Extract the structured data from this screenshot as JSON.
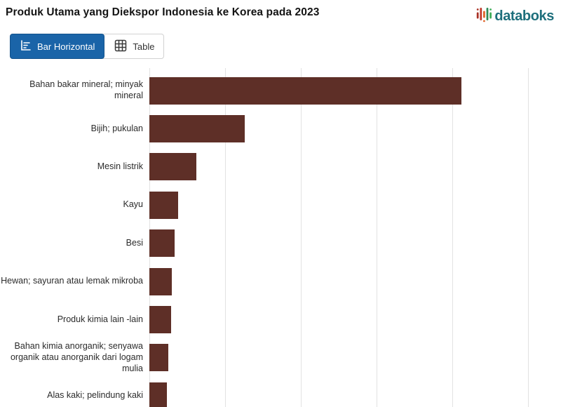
{
  "header": {
    "title": "Produk Utama yang Diekspor Indonesia ke Korea pada 2023",
    "logo_text": "databoks"
  },
  "tabs": [
    {
      "label": "Bar Horizontal",
      "icon": "bar-horizontal-icon",
      "active": true
    },
    {
      "label": "Table",
      "icon": "table-icon",
      "active": false
    }
  ],
  "colors": {
    "bar": "#5e2f27",
    "active_tab": "#1a64a8",
    "gridline": "#e2e2e2",
    "logo_teal": "#1e6f7c"
  },
  "chart_data": {
    "type": "bar",
    "orientation": "horizontal",
    "title": "Produk Utama yang Diekspor Indonesia ke Korea pada 2023",
    "categories": [
      "Bahan bakar mineral; minyak mineral",
      "Bijih; pukulan",
      "Mesin listrik",
      "Kayu",
      "Besi",
      "Hewan; sayuran atau lemak mikroba",
      "Produk kimia lain -lain",
      "Bahan kimia anorganik; senyawa organik atau anorganik dari logam mulia",
      "Alas kaki; pelindung kaki"
    ],
    "values": [
      4.12,
      1.26,
      0.62,
      0.38,
      0.33,
      0.3,
      0.29,
      0.25,
      0.23
    ],
    "value_note": "axis tick labels are not visible in the screenshot; values estimated in gridline units (1 unit = 1 gridline interval)",
    "xlim": [
      0,
      5.25
    ],
    "gridline_interval": 1,
    "grid": true,
    "legend": false,
    "bar_color": "#5e2f27",
    "xlabel": "",
    "ylabel": ""
  }
}
